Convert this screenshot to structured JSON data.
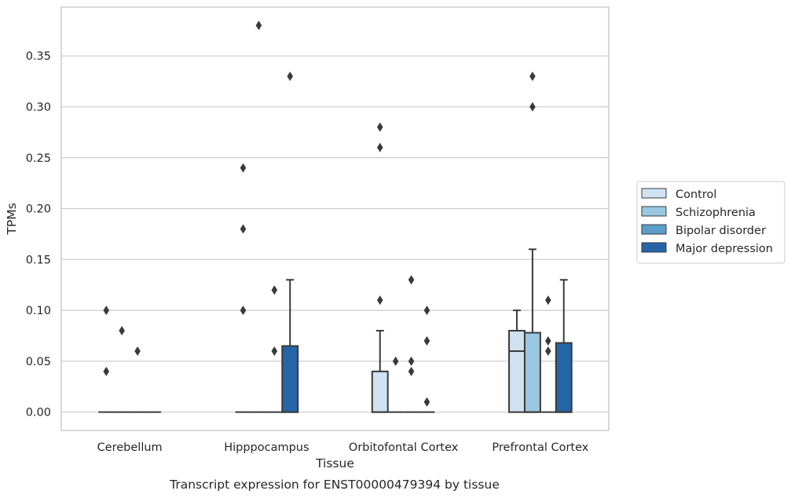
{
  "chart_data": {
    "type": "box",
    "title": "Transcript expression for ENST00000479394 by tissue",
    "xlabel": "Tissue",
    "ylabel": "TPMs",
    "ylim": [
      -0.018,
      0.398
    ],
    "yticks": [
      "0.00",
      "0.05",
      "0.10",
      "0.15",
      "0.20",
      "0.25",
      "0.30",
      "0.35"
    ],
    "grid": true,
    "legend_position": "right",
    "categories": [
      "Cerebellum",
      "Hipppocampus",
      "Orbitofontal Cortex",
      "Prefrontal Cortex"
    ],
    "series": [
      {
        "name": "Control",
        "color": "#d0e2f2",
        "boxes": [
          {
            "q1": 0,
            "median": 0,
            "q3": 0,
            "whisker_low": 0,
            "whisker_high": 0,
            "outliers": [
              0.1,
              0.04
            ]
          },
          {
            "q1": 0,
            "median": 0,
            "q3": 0,
            "whisker_low": 0,
            "whisker_high": 0,
            "outliers": [
              0.24,
              0.18,
              0.1
            ]
          },
          {
            "q1": 0,
            "median": 0,
            "q3": 0.04,
            "whisker_low": 0,
            "whisker_high": 0.08,
            "outliers": [
              0.28,
              0.26,
              0.11
            ]
          },
          {
            "q1": 0,
            "median": 0.06,
            "q3": 0.08,
            "whisker_low": 0,
            "whisker_high": 0.1,
            "outliers": []
          }
        ]
      },
      {
        "name": "Schizophrenia",
        "color": "#9ac8e0",
        "boxes": [
          {
            "q1": 0,
            "median": 0,
            "q3": 0,
            "whisker_low": 0,
            "whisker_high": 0,
            "outliers": [
              0.08
            ]
          },
          {
            "q1": 0,
            "median": 0,
            "q3": 0,
            "whisker_low": 0,
            "whisker_high": 0,
            "outliers": [
              0.38
            ]
          },
          {
            "q1": 0,
            "median": 0,
            "q3": 0,
            "whisker_low": 0,
            "whisker_high": 0,
            "outliers": [
              0.05
            ]
          },
          {
            "q1": 0,
            "median": 0,
            "q3": 0.078,
            "whisker_low": 0,
            "whisker_high": 0.16,
            "outliers": [
              0.33,
              0.3
            ]
          }
        ]
      },
      {
        "name": "Bipolar disorder",
        "color": "#5a9ec9",
        "boxes": [
          {
            "q1": 0,
            "median": 0,
            "q3": 0,
            "whisker_low": 0,
            "whisker_high": 0,
            "outliers": [
              0.06
            ]
          },
          {
            "q1": 0,
            "median": 0,
            "q3": 0,
            "whisker_low": 0,
            "whisker_high": 0,
            "outliers": [
              0.12,
              0.06
            ]
          },
          {
            "q1": 0,
            "median": 0,
            "q3": 0,
            "whisker_low": 0,
            "whisker_high": 0,
            "outliers": [
              0.13,
              0.05,
              0.04
            ]
          },
          {
            "q1": 0,
            "median": 0,
            "q3": 0,
            "whisker_low": 0,
            "whisker_high": 0,
            "outliers": [
              0.11,
              0.07,
              0.06
            ]
          }
        ]
      },
      {
        "name": "Major depression",
        "color": "#2565a8",
        "boxes": [
          {
            "q1": 0,
            "median": 0,
            "q3": 0,
            "whisker_low": 0,
            "whisker_high": 0,
            "outliers": []
          },
          {
            "q1": 0,
            "median": 0,
            "q3": 0.065,
            "whisker_low": 0,
            "whisker_high": 0.13,
            "outliers": [
              0.33
            ]
          },
          {
            "q1": 0,
            "median": 0,
            "q3": 0,
            "whisker_low": 0,
            "whisker_high": 0,
            "outliers": [
              0.1,
              0.07,
              0.01
            ]
          },
          {
            "q1": 0,
            "median": 0,
            "q3": 0.068,
            "whisker_low": 0,
            "whisker_high": 0.13,
            "outliers": []
          }
        ]
      }
    ]
  }
}
